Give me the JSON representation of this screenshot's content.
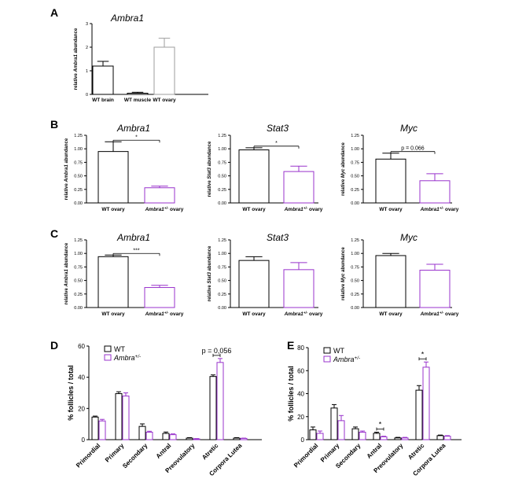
{
  "panels": {
    "A": "A",
    "B": "B",
    "C": "C",
    "D": "D",
    "E": "E"
  },
  "chart_data": [
    {
      "id": "A",
      "type": "bar",
      "title": "Ambra1",
      "ylabel": "relative Ambra1 abundance",
      "categories": [
        "WT brain",
        "WT muscle",
        "WT ovary"
      ],
      "values": [
        1.2,
        0.05,
        2.0
      ],
      "errors": [
        0.2,
        0.04,
        0.38
      ],
      "colors": [
        "#000000",
        "#000000",
        "#9e9e9e"
      ],
      "ylim": [
        0,
        3
      ],
      "yticks": [
        "0",
        "1",
        "2",
        "3"
      ],
      "ytick_values": [
        0,
        1,
        2,
        3
      ]
    },
    {
      "id": "B1",
      "type": "bar",
      "title": "Ambra1",
      "ylabel": "relative Ambra1 abundance",
      "categories": [
        "WT ovary",
        "Ambra1+/- ovary"
      ],
      "values": [
        0.95,
        0.28
      ],
      "errors": [
        0.18,
        0.03
      ],
      "colors": [
        "#000000",
        "#9933cc"
      ],
      "ylim": [
        0,
        1.25
      ],
      "yticks": [
        "0.00",
        "0.25",
        "0.50",
        "0.75",
        "1.00",
        "1.25"
      ],
      "ytick_values": [
        0,
        0.25,
        0.5,
        0.75,
        1.0,
        1.25
      ],
      "significance": "*"
    },
    {
      "id": "B2",
      "type": "bar",
      "title": "Stat3",
      "ylabel": "relative Stat3 abundance",
      "categories": [
        "WT ovary",
        "Ambra1+/- ovary"
      ],
      "values": [
        0.98,
        0.58
      ],
      "errors": [
        0.04,
        0.1
      ],
      "colors": [
        "#000000",
        "#9933cc"
      ],
      "ylim": [
        0,
        1.25
      ],
      "yticks": [
        "0.00",
        "0.25",
        "0.50",
        "0.75",
        "1.00",
        "1.25"
      ],
      "ytick_values": [
        0,
        0.25,
        0.5,
        0.75,
        1.0,
        1.25
      ],
      "significance": "*"
    },
    {
      "id": "B3",
      "type": "bar",
      "title": "Myc",
      "ylabel": "relative Myc abundance",
      "categories": [
        "WT ovary",
        "Ambra1+/- ovary"
      ],
      "values": [
        0.81,
        0.41
      ],
      "errors": [
        0.11,
        0.13
      ],
      "colors": [
        "#000000",
        "#9933cc"
      ],
      "ylim": [
        0,
        1.25
      ],
      "yticks": [
        "0.00",
        "0.25",
        "0.50",
        "0.75",
        "1.00",
        "1.25"
      ],
      "ytick_values": [
        0,
        0.25,
        0.5,
        0.75,
        1.0,
        1.25
      ],
      "significance": "p = 0.066"
    },
    {
      "id": "C1",
      "type": "bar",
      "title": "Ambra1",
      "ylabel": "relative Ambra1 abundance",
      "categories": [
        "WT ovary",
        "Ambra1+/- ovary"
      ],
      "values": [
        0.94,
        0.37
      ],
      "errors": [
        0.03,
        0.04
      ],
      "colors": [
        "#000000",
        "#9933cc"
      ],
      "ylim": [
        0,
        1.25
      ],
      "yticks": [
        "0.00",
        "0.25",
        "0.50",
        "0.75",
        "1.00",
        "1.25"
      ],
      "ytick_values": [
        0,
        0.25,
        0.5,
        0.75,
        1.0,
        1.25
      ],
      "significance": "***"
    },
    {
      "id": "C2",
      "type": "bar",
      "title": "Stat3",
      "ylabel": "relative Stat3 abundance",
      "categories": [
        "WT ovary",
        "Ambra1+/- ovary"
      ],
      "values": [
        0.87,
        0.7
      ],
      "errors": [
        0.07,
        0.13
      ],
      "colors": [
        "#000000",
        "#9933cc"
      ],
      "ylim": [
        0,
        1.25
      ],
      "yticks": [
        "0.00",
        "0.25",
        "0.50",
        "0.75",
        "1.00",
        "1.25"
      ],
      "ytick_values": [
        0,
        0.25,
        0.5,
        0.75,
        1.0,
        1.25
      ]
    },
    {
      "id": "C3",
      "type": "bar",
      "title": "Myc",
      "ylabel": "relative Myc abundance",
      "categories": [
        "WT ovary",
        "Ambra1+/- ovary"
      ],
      "values": [
        0.96,
        0.69
      ],
      "errors": [
        0.04,
        0.11
      ],
      "colors": [
        "#000000",
        "#9933cc"
      ],
      "ylim": [
        0,
        1.25
      ],
      "yticks": [
        "0.00",
        "0.25",
        "0.50",
        "0.75",
        "1.00",
        "1.25"
      ],
      "ytick_values": [
        0,
        0.25,
        0.5,
        0.75,
        1.0,
        1.25
      ]
    },
    {
      "id": "D",
      "type": "bar",
      "title": "",
      "ylabel": "% follicles / total",
      "categories": [
        "Primordial",
        "Primary",
        "Secondary",
        "Antral",
        "Preovulatory",
        "Atretic",
        "Corpora Lutea"
      ],
      "series": [
        {
          "name": "WT",
          "color": "#000000",
          "values": [
            14.5,
            29.5,
            8.5,
            4.0,
            1.0,
            40.5,
            1.0
          ],
          "errors": [
            0.6,
            1.2,
            1.6,
            0.9,
            0.3,
            1.0,
            0.3
          ]
        },
        {
          "name": "Ambra+/-",
          "color": "#9933cc",
          "values": [
            12.0,
            28.0,
            4.8,
            3.2,
            0.5,
            49.5,
            0.8
          ],
          "errors": [
            1.0,
            2.0,
            0.6,
            0.5,
            0.2,
            2.5,
            0.2
          ]
        }
      ],
      "ylim": [
        0,
        60
      ],
      "yticks": [
        "0",
        "20",
        "40",
        "60"
      ],
      "ytick_values": [
        0,
        20,
        40,
        60
      ],
      "annotations": [
        {
          "category": "Atretic",
          "text": "p = 0,056"
        }
      ]
    },
    {
      "id": "E",
      "type": "bar",
      "title": "",
      "ylabel": "% follicles / total",
      "categories": [
        "Primordial",
        "Primary",
        "Secondary",
        "Antral",
        "Preovulatory",
        "Atretic",
        "Corpora Lutea"
      ],
      "series": [
        {
          "name": "WT",
          "color": "#000000",
          "values": [
            8.5,
            27.5,
            9.5,
            5.5,
            1.5,
            43.0,
            3.5
          ],
          "errors": [
            2.5,
            3.0,
            1.5,
            1.0,
            0.5,
            4.0,
            0.5
          ]
        },
        {
          "name": "Ambra+/-",
          "color": "#9933cc",
          "values": [
            5.5,
            16.5,
            6.5,
            2.5,
            1.5,
            63.0,
            3.0
          ],
          "errors": [
            2.0,
            4.5,
            1.0,
            0.5,
            0.5,
            4.5,
            0.5
          ]
        }
      ],
      "ylim": [
        0,
        80
      ],
      "yticks": [
        "0",
        "20",
        "40",
        "60",
        "80"
      ],
      "ytick_values": [
        0,
        20,
        40,
        60,
        80
      ],
      "annotations": [
        {
          "category": "Antral",
          "text": "*"
        },
        {
          "category": "Atretic",
          "text": "*"
        }
      ]
    }
  ]
}
